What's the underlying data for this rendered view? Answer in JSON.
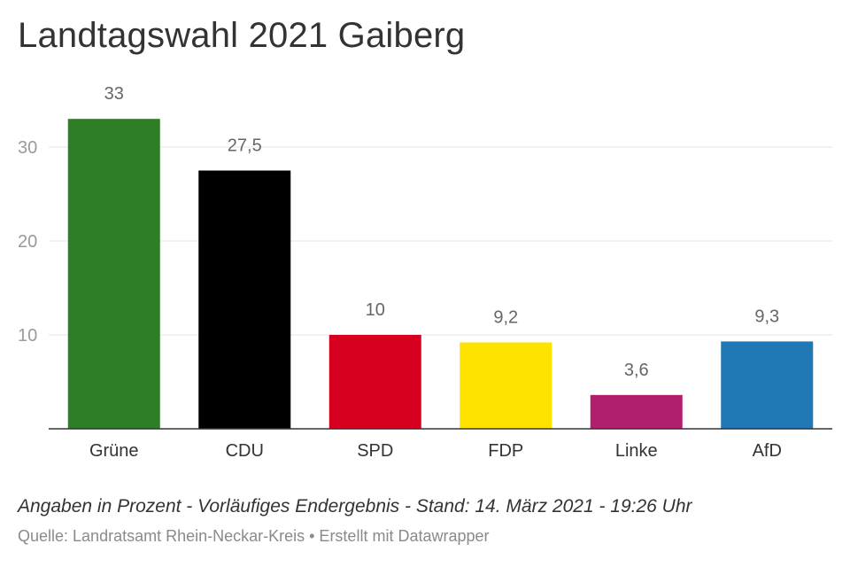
{
  "title": "Landtagswahl 2021 Gaiberg",
  "note": "Angaben in Prozent - Vorläufiges Endergebnis - Stand: 14. März 2021 - 19:26 Uhr",
  "source": "Quelle: Landratsamt Rhein-Neckar-Kreis • Erstellt mit Datawrapper",
  "chart_data": {
    "type": "bar",
    "categories": [
      "Grüne",
      "CDU",
      "SPD",
      "FDP",
      "Linke",
      "AfD"
    ],
    "values": [
      33,
      27.5,
      10,
      9.2,
      3.6,
      9.3
    ],
    "value_labels": [
      "33",
      "27,5",
      "10",
      "9,2",
      "3,6",
      "9,3"
    ],
    "colors": [
      "#2e7d27",
      "#000000",
      "#d7001f",
      "#ffe300",
      "#b01f6e",
      "#1f77b4"
    ],
    "yticks": [
      10,
      20,
      30
    ],
    "ylim": [
      0,
      33
    ],
    "grid": true,
    "legend": "none"
  }
}
